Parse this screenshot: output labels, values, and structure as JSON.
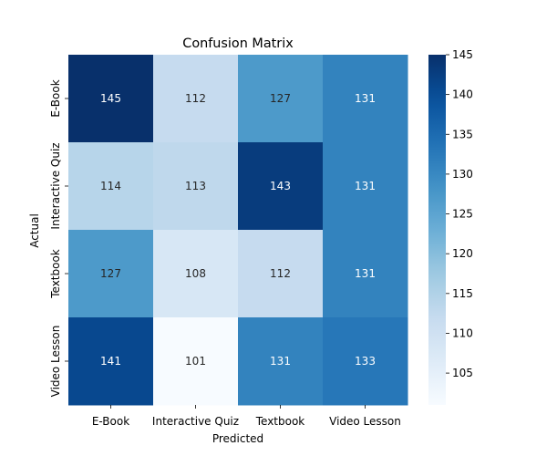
{
  "chart_data": {
    "type": "heatmap",
    "title": "Confusion Matrix",
    "xlabel": "Predicted",
    "ylabel": "Actual",
    "x_categories": [
      "E-Book",
      "Interactive Quiz",
      "Textbook",
      "Video Lesson"
    ],
    "y_categories": [
      "E-Book",
      "Interactive Quiz",
      "Textbook",
      "Video Lesson"
    ],
    "values": [
      [
        145,
        112,
        127,
        131
      ],
      [
        114,
        113,
        143,
        131
      ],
      [
        127,
        108,
        112,
        131
      ],
      [
        141,
        101,
        131,
        133
      ]
    ],
    "colormap": "Blues",
    "colorbar": {
      "range": [
        101,
        145
      ],
      "ticks": [
        105,
        110,
        115,
        120,
        125,
        130,
        135,
        140,
        145
      ]
    },
    "annotations": true
  }
}
